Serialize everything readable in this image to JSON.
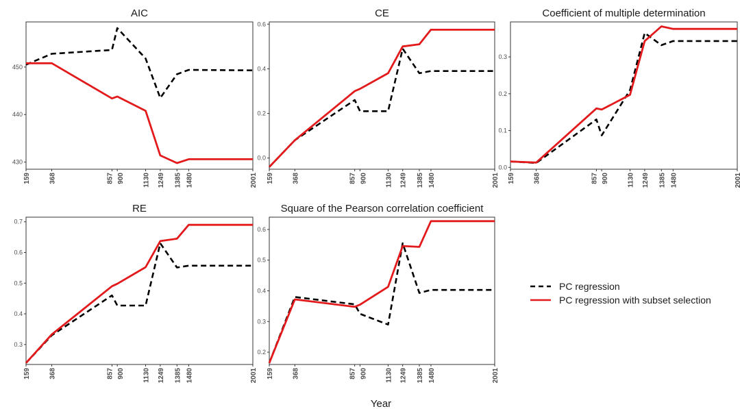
{
  "figure": {
    "xlabel": "Year",
    "legend": {
      "placement": "right",
      "entries": [
        {
          "label": "PC regression",
          "color": "#000000",
          "style": "dashed"
        },
        {
          "label": "PC regression with subset selection",
          "color": "#e31a1c",
          "style": "solid"
        }
      ]
    }
  },
  "chart_data": [
    {
      "type": "line",
      "title": "AIC",
      "x_ticks": [
        159,
        368,
        857,
        900,
        1130,
        1249,
        1385,
        1480,
        2001
      ],
      "xlim": [
        159,
        2001
      ],
      "ylim": [
        428.5,
        459.5
      ],
      "y_ticks": [
        430,
        440,
        450
      ],
      "series": [
        {
          "name": "PC regression",
          "style": "dashed",
          "color": "#000000",
          "x": [
            159,
            368,
            857,
            900,
            1130,
            1249,
            1385,
            1480,
            2001
          ],
          "y": [
            450.5,
            452.8,
            453.6,
            458.2,
            451.8,
            443.5,
            448.5,
            449.4,
            449.3
          ]
        },
        {
          "name": "PC regression with subset selection",
          "style": "solid",
          "color": "#e31a1c",
          "x": [
            159,
            368,
            857,
            900,
            1130,
            1249,
            1385,
            1480,
            2001
          ],
          "y": [
            450.8,
            450.8,
            443.4,
            443.8,
            440.8,
            431.4,
            429.8,
            430.6,
            430.6
          ]
        }
      ]
    },
    {
      "type": "line",
      "title": "CE",
      "x_ticks": [
        159,
        368,
        857,
        900,
        1130,
        1249,
        1385,
        1480,
        2001
      ],
      "xlim": [
        159,
        2001
      ],
      "ylim": [
        -0.05,
        0.61
      ],
      "y_ticks": [
        0.0,
        0.2,
        0.4,
        0.6
      ],
      "y_tick_labels": [
        "0.0",
        "0.2",
        "0.4",
        "0.6"
      ],
      "series": [
        {
          "name": "PC regression",
          "style": "dashed",
          "color": "#000000",
          "x": [
            159,
            368,
            857,
            900,
            1130,
            1249,
            1385,
            1480,
            2001
          ],
          "y": [
            -0.04,
            0.08,
            0.26,
            0.21,
            0.21,
            0.49,
            0.38,
            0.39,
            0.39
          ]
        },
        {
          "name": "PC regression with subset selection",
          "style": "solid",
          "color": "#e31a1c",
          "x": [
            159,
            368,
            857,
            900,
            1130,
            1249,
            1385,
            1480,
            2001
          ],
          "y": [
            -0.04,
            0.08,
            0.3,
            0.31,
            0.38,
            0.5,
            0.51,
            0.575,
            0.575
          ]
        }
      ]
    },
    {
      "type": "line",
      "title": "Coefficient of multiple determination",
      "x_ticks": [
        159,
        368,
        857,
        900,
        1130,
        1249,
        1385,
        1480,
        2001
      ],
      "xlim": [
        159,
        2001
      ],
      "ylim": [
        -0.005,
        0.395
      ],
      "y_ticks": [
        0.0,
        0.1,
        0.2,
        0.3
      ],
      "y_tick_labels": [
        "0.0",
        "0.1",
        "0.2",
        "0.3"
      ],
      "series": [
        {
          "name": "PC regression",
          "style": "dashed",
          "color": "#000000",
          "x": [
            159,
            368,
            857,
            900,
            1130,
            1249,
            1385,
            1480,
            2001
          ],
          "y": [
            0.016,
            0.012,
            0.13,
            0.087,
            0.21,
            0.365,
            0.332,
            0.343,
            0.343
          ]
        },
        {
          "name": "PC regression with subset selection",
          "style": "solid",
          "color": "#e31a1c",
          "x": [
            159,
            368,
            857,
            900,
            1130,
            1249,
            1385,
            1480,
            2001
          ],
          "y": [
            0.016,
            0.013,
            0.16,
            0.157,
            0.197,
            0.343,
            0.383,
            0.376,
            0.376
          ]
        }
      ]
    },
    {
      "type": "line",
      "title": "RE",
      "x_ticks": [
        159,
        368,
        857,
        900,
        1130,
        1249,
        1385,
        1480,
        2001
      ],
      "xlim": [
        159,
        2001
      ],
      "ylim": [
        0.235,
        0.715
      ],
      "y_ticks": [
        0.3,
        0.4,
        0.5,
        0.6,
        0.7
      ],
      "y_tick_labels": [
        "0.3",
        "0.4",
        "0.5",
        "0.6",
        "0.7"
      ],
      "series": [
        {
          "name": "PC regression",
          "style": "dashed",
          "color": "#000000",
          "x": [
            159,
            368,
            857,
            900,
            1130,
            1249,
            1385,
            1480,
            2001
          ],
          "y": [
            0.24,
            0.33,
            0.46,
            0.427,
            0.427,
            0.63,
            0.551,
            0.557,
            0.557
          ]
        },
        {
          "name": "PC regression with subset selection",
          "style": "solid",
          "color": "#e31a1c",
          "x": [
            159,
            368,
            857,
            900,
            1130,
            1249,
            1385,
            1480,
            2001
          ],
          "y": [
            0.24,
            0.333,
            0.49,
            0.498,
            0.552,
            0.637,
            0.645,
            0.69,
            0.69
          ]
        }
      ]
    },
    {
      "type": "line",
      "title": "Square of the Pearson correlation coefficient",
      "x_ticks": [
        159,
        368,
        857,
        900,
        1130,
        1249,
        1385,
        1480,
        2001
      ],
      "xlim": [
        159,
        2001
      ],
      "ylim": [
        0.16,
        0.64
      ],
      "y_ticks": [
        0.2,
        0.3,
        0.4,
        0.5,
        0.6
      ],
      "y_tick_labels": [
        "0.2",
        "0.3",
        "0.4",
        "0.5",
        "0.6"
      ],
      "series": [
        {
          "name": "PC regression",
          "style": "dashed",
          "color": "#000000",
          "x": [
            159,
            368,
            857,
            900,
            1130,
            1249,
            1385,
            1480,
            2001
          ],
          "y": [
            0.165,
            0.38,
            0.356,
            0.325,
            0.29,
            0.555,
            0.393,
            0.403,
            0.403
          ]
        },
        {
          "name": "PC regression with subset selection",
          "style": "solid",
          "color": "#e31a1c",
          "x": [
            159,
            368,
            857,
            900,
            1130,
            1249,
            1385,
            1480,
            2001
          ],
          "y": [
            0.165,
            0.372,
            0.348,
            0.355,
            0.413,
            0.546,
            0.543,
            0.627,
            0.627
          ]
        }
      ]
    }
  ]
}
